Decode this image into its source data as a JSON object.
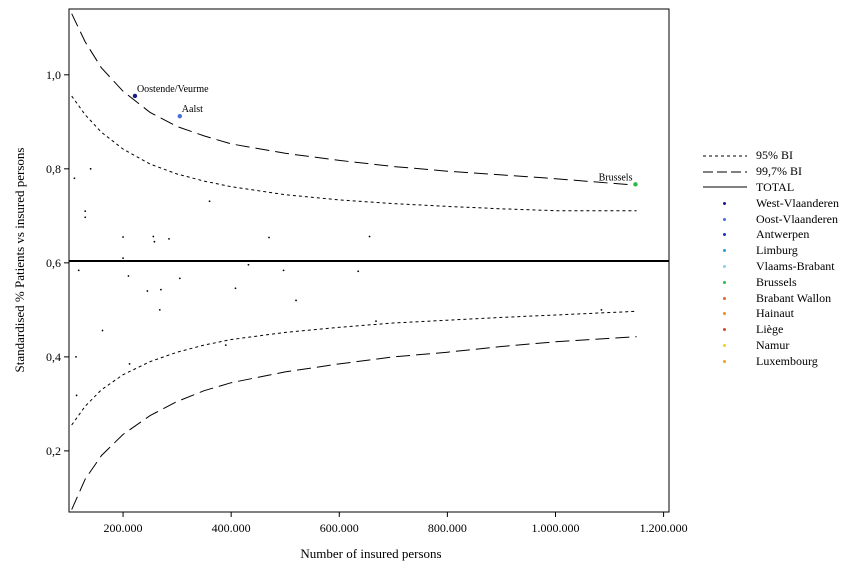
{
  "chart_data": {
    "type": "scatter",
    "xlabel": "Number of insured persons",
    "ylabel": "Standardised % Patients vs insured persons",
    "xlim": [
      100000,
      1210000
    ],
    "ylim": [
      0.07,
      1.14
    ],
    "x_ticks": [
      200000,
      400000,
      600000,
      800000,
      1000000,
      1200000
    ],
    "x_tick_labels": [
      "200.000",
      "400.000",
      "600.000",
      "800.000",
      "1.000.000",
      "1.200.000"
    ],
    "y_ticks": [
      0.2,
      0.4,
      0.6,
      0.8,
      1.0
    ],
    "y_tick_labels": [
      "0,2",
      "0,4",
      "0,6",
      "0,8",
      "1,0"
    ],
    "grid": false,
    "legend_position": "right",
    "total": 0.604,
    "bands": [
      {
        "name": "95% BI",
        "style": "short-dash",
        "x": [
          105000,
          130000,
          160000,
          200000,
          250000,
          300000,
          350000,
          400000,
          500000,
          600000,
          700000,
          800000,
          900000,
          1000000,
          1150000
        ],
        "upper": [
          0.955,
          0.915,
          0.878,
          0.842,
          0.81,
          0.789,
          0.774,
          0.762,
          0.745,
          0.734,
          0.726,
          0.72,
          0.715,
          0.711,
          0.711
        ],
        "lower": [
          0.255,
          0.295,
          0.33,
          0.362,
          0.39,
          0.41,
          0.425,
          0.437,
          0.452,
          0.463,
          0.472,
          0.478,
          0.484,
          0.489,
          0.497
        ]
      },
      {
        "name": "99,7% BI",
        "style": "long-dash",
        "x": [
          105000,
          130000,
          160000,
          200000,
          250000,
          300000,
          350000,
          400000,
          500000,
          600000,
          700000,
          800000,
          900000,
          1000000,
          1150000
        ],
        "upper": [
          1.13,
          1.07,
          1.015,
          0.965,
          0.92,
          0.89,
          0.87,
          0.853,
          0.833,
          0.818,
          0.805,
          0.795,
          0.787,
          0.779,
          0.765
        ],
        "lower": [
          0.075,
          0.14,
          0.19,
          0.235,
          0.275,
          0.305,
          0.328,
          0.345,
          0.368,
          0.385,
          0.4,
          0.41,
          0.422,
          0.432,
          0.443
        ]
      }
    ],
    "series": [
      {
        "name": "West-Vlaanderen",
        "color": "#1a1a8a",
        "points": [
          [
            222000,
            0.955,
            "Oostende/Veurme"
          ]
        ]
      },
      {
        "name": "Oost-Vlaanderen",
        "color": "#4a6fd8",
        "points": [
          [
            305000,
            0.912,
            "Aalst"
          ]
        ]
      },
      {
        "name": "Antwerpen",
        "color": "#1b2fd0",
        "points": []
      },
      {
        "name": "Limburg",
        "color": "#2d9ad6",
        "points": []
      },
      {
        "name": "Vlaams-Brabant",
        "color": "#8ad0ec",
        "points": []
      },
      {
        "name": "Brussels",
        "color": "#2fb84a",
        "points": [
          [
            1148000,
            0.767,
            "Brussels"
          ]
        ]
      },
      {
        "name": "Brabant Wallon",
        "color": "#d96a2e",
        "points": []
      },
      {
        "name": "Hainaut",
        "color": "#f08a1e",
        "points": []
      },
      {
        "name": "Liège",
        "color": "#c8502a",
        "points": []
      },
      {
        "name": "Namur",
        "color": "#f2d21e",
        "points": []
      },
      {
        "name": "Luxembourg",
        "color": "#f0a020",
        "points": []
      }
    ],
    "other_points": [
      [
        110000,
        0.78
      ],
      [
        113000,
        0.4
      ],
      [
        114000,
        0.318
      ],
      [
        118000,
        0.584
      ],
      [
        130000,
        0.71
      ],
      [
        130000,
        0.697
      ],
      [
        140000,
        0.8
      ],
      [
        162000,
        0.456
      ],
      [
        200000,
        0.655
      ],
      [
        200000,
        0.61
      ],
      [
        210000,
        0.572
      ],
      [
        212000,
        0.385
      ],
      [
        245000,
        0.54
      ],
      [
        256000,
        0.656
      ],
      [
        258000,
        0.645
      ],
      [
        268000,
        0.5
      ],
      [
        270000,
        0.543
      ],
      [
        285000,
        0.651
      ],
      [
        305000,
        0.567
      ],
      [
        360000,
        0.731
      ],
      [
        390000,
        0.425
      ],
      [
        408000,
        0.546
      ],
      [
        470000,
        0.654
      ],
      [
        432000,
        0.596
      ],
      [
        497000,
        0.584
      ],
      [
        520000,
        0.52
      ],
      [
        635000,
        0.582
      ],
      [
        656000,
        0.656
      ],
      [
        668000,
        0.476
      ],
      [
        1085000,
        0.5
      ]
    ]
  },
  "legend": {
    "entries": [
      {
        "label": "95% BI",
        "kind": "short-dash"
      },
      {
        "label": "99,7% BI",
        "kind": "long-dash"
      },
      {
        "label": "TOTAL",
        "kind": "solid"
      },
      {
        "label": "West-Vlaanderen",
        "kind": "dot",
        "color": "#1a1a8a"
      },
      {
        "label": "Oost-Vlaanderen",
        "kind": "dot",
        "color": "#4a6fd8"
      },
      {
        "label": "Antwerpen",
        "kind": "dot",
        "color": "#1b2fd0"
      },
      {
        "label": "Limburg",
        "kind": "dot",
        "color": "#2d9ad6"
      },
      {
        "label": "Vlaams-Brabant",
        "kind": "dot",
        "color": "#8ad0ec"
      },
      {
        "label": "Brussels",
        "kind": "dot",
        "color": "#2fb84a"
      },
      {
        "label": "Brabant Wallon",
        "kind": "dot",
        "color": "#d96a2e"
      },
      {
        "label": "Hainaut",
        "kind": "dot",
        "color": "#f08a1e"
      },
      {
        "label": "Liège",
        "kind": "dot",
        "color": "#c8502a"
      },
      {
        "label": "Namur",
        "kind": "dot",
        "color": "#f2d21e"
      },
      {
        "label": "Luxembourg",
        "kind": "dot",
        "color": "#f0a020"
      }
    ]
  }
}
